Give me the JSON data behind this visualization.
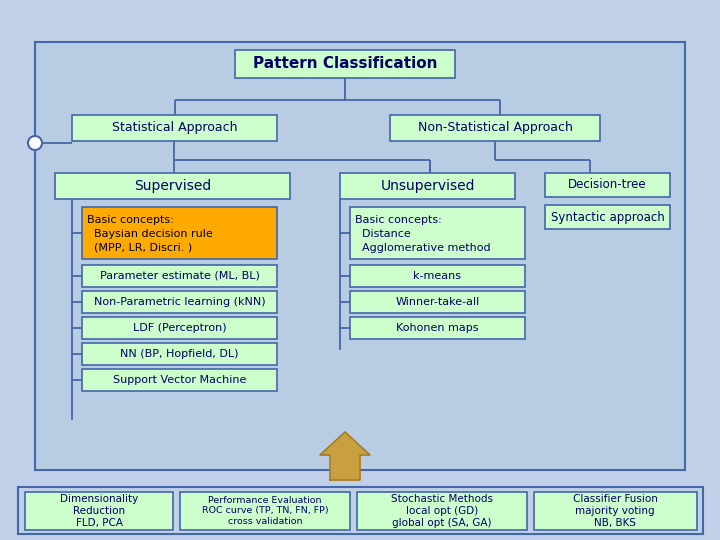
{
  "bg_outer": "#c0d0e8",
  "bg_main": "#b8cce4",
  "bg_bottom_strip": "#c0d0e8",
  "box_green": "#ccffcc",
  "box_orange": "#ffaa00",
  "edge_color": "#4466aa",
  "text_dark": "#000066",
  "arrow_color": "#c8a040",
  "title": "Pattern Classification",
  "stat_approach": "Statistical Approach",
  "nonstat_approach": "Non-Statistical Approach",
  "supervised": "Supervised",
  "unsupervised": "Unsupervised",
  "decision_tree": "Decision-tree",
  "syntactic": "Syntactic approach",
  "basic_stat_line1": "Basic concepts:",
  "basic_stat_line2": "  Baysian decision rule",
  "basic_stat_line3": "  (MPP, LR, Discri. )",
  "basic_unstat_line1": "Basic concepts:",
  "basic_unstat_line2": "  Distance",
  "basic_unstat_line3": "  Agglomerative method",
  "param_estimate": "Parameter estimate (ML, BL)",
  "nonparam": "Non-Parametric learning (kNN)",
  "ldf": "LDF (Perceptron)",
  "nn": "NN (BP, Hopfield, DL)",
  "svm": "Support Vector Machine",
  "kmeans": "k-means",
  "winner": "Winner-take-all",
  "kohonen": "Kohonen maps",
  "dim_red": "Dimensionality\nReduction\nFLD, PCA",
  "perf_eval": "Performance Evaluation\nROC curve (TP, TN, FN, FP)\ncross validation",
  "stoch": "Stochastic Methods\nlocal opt (GD)\nglobal opt (SA, GA)",
  "classifier": "Classifier Fusion\nmajority voting\nNB, BKS"
}
